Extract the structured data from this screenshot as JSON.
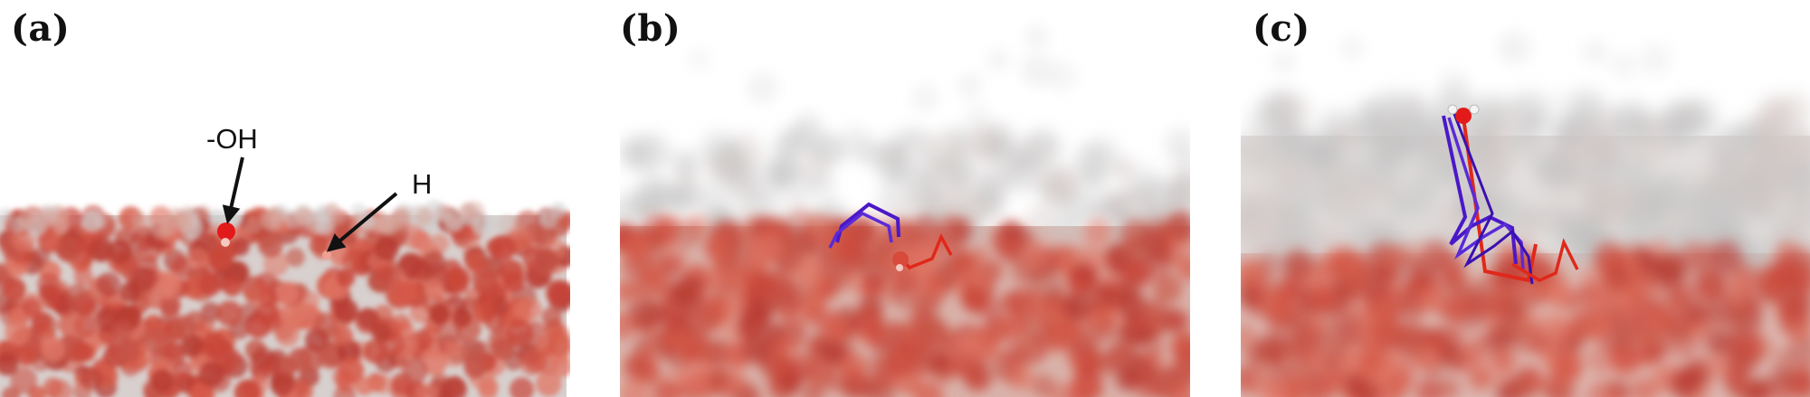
{
  "figure": {
    "panels": [
      {
        "label": "(a)",
        "annotations": [
          {
            "text": "-OH"
          },
          {
            "text": "H"
          }
        ]
      },
      {
        "label": "(b)"
      },
      {
        "label": "(c)"
      }
    ],
    "colors": {
      "surface_red": "#c8493a",
      "oxygen_red": "#e31a1a",
      "hydrogen_pink": "#f2c8c0",
      "trajectory_blue": "#4a18c8",
      "trajectory_red": "#e0281a",
      "vapor_gray": "#b8b8b8"
    }
  }
}
